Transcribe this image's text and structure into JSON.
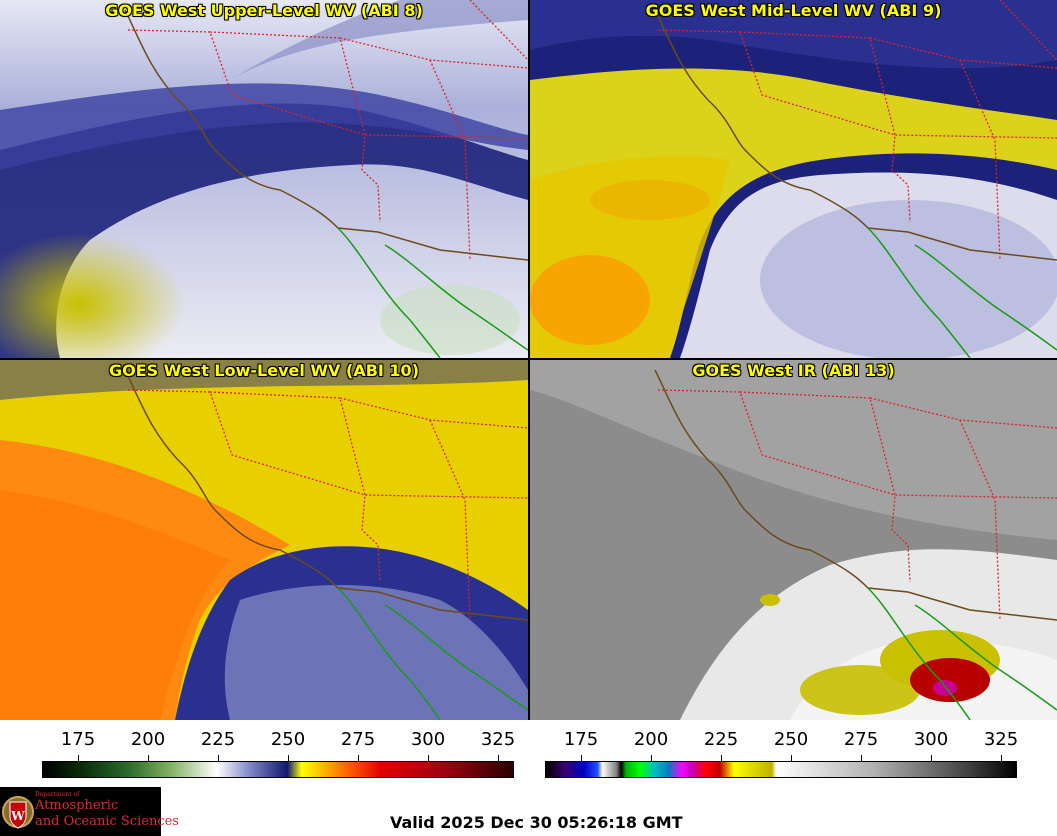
{
  "panels": [
    {
      "id": "upper",
      "title": "GOES West Upper-Level WV (ABI 8)"
    },
    {
      "id": "mid",
      "title": "GOES West Mid-Level WV (ABI 9)"
    },
    {
      "id": "low",
      "title": "GOES West Low-Level WV (ABI 10)"
    },
    {
      "id": "ir",
      "title": "GOES West IR (ABI 13)"
    }
  ],
  "colorbars": {
    "wv": {
      "ticks": [
        "175",
        "200",
        "225",
        "250",
        "275",
        "300",
        "325"
      ]
    },
    "ir": {
      "ticks": [
        "175",
        "200",
        "225",
        "250",
        "275",
        "300",
        "325"
      ]
    }
  },
  "logo": {
    "dept": "Department of",
    "line1": "Atmospheric",
    "line2": "and Oceanic Sciences"
  },
  "valid_time": "Valid 2025 Dec 30 05:26:18 GMT",
  "colors": {
    "state_borders": "#e0202a",
    "coastline": "#6b4a1c",
    "mexico_coast": "#1a9a1a",
    "title_text": "#ffff00"
  }
}
